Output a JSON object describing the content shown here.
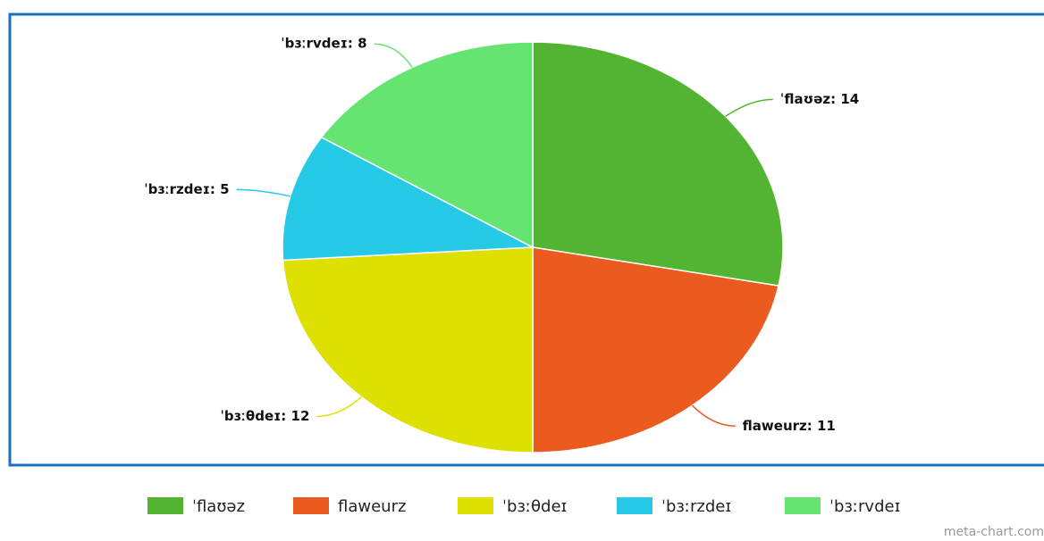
{
  "chart_data": {
    "type": "pie",
    "categories": [
      "ˈflaʊəz",
      "flaweurz",
      "ˈbɜːθdeɪ",
      "ˈbɜːrzdeɪ",
      "ˈbɜːrvdeɪ"
    ],
    "values": [
      14,
      11,
      12,
      5,
      8
    ],
    "value_labels": [
      "ˈflaʊəz: 14",
      "flaweurz: 11",
      "ˈbɜːθdeɪ: 12",
      "ˈbɜːrzdeɪ: 5",
      "ˈbɜːrvdeɪ: 8"
    ],
    "colors": [
      "#53b332",
      "#eb5a1e",
      "#dde000",
      "#26c9e6",
      "#66e472"
    ],
    "legend": "bottom",
    "watermark": "meta-chart.com"
  }
}
